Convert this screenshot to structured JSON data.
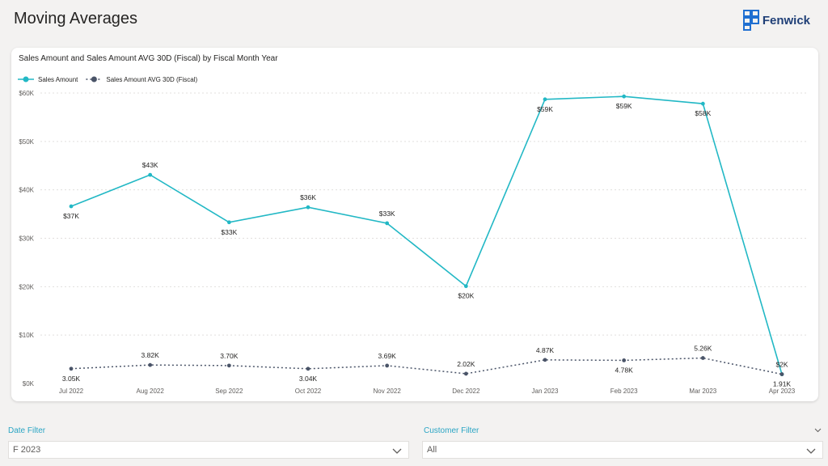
{
  "page": {
    "title": "Moving Averages"
  },
  "brand": {
    "name": "Fenwick"
  },
  "colors": {
    "sales": "#22b8c5",
    "avg": "#4a5468",
    "accent": "#2aa5c4"
  },
  "chart_data": {
    "type": "line",
    "title": "Sales Amount and Sales Amount AVG 30D (Fiscal) by Fiscal Month Year",
    "categories": [
      "Jul 2022",
      "Aug 2022",
      "Sep 2022",
      "Oct 2022",
      "Nov 2022",
      "Dec 2022",
      "Jan 2023",
      "Feb 2023",
      "Mar 2023",
      "Apr 2023"
    ],
    "ylim": [
      0,
      60000
    ],
    "yticks": [
      "$0K",
      "$10K",
      "$20K",
      "$30K",
      "$40K",
      "$50K",
      "$60K"
    ],
    "grid": true,
    "legend_position": "top-left",
    "series": [
      {
        "name": "Sales Amount",
        "style": "solid",
        "values": [
          36600,
          43100,
          33300,
          36400,
          33100,
          20100,
          58700,
          59300,
          57800,
          1900
        ],
        "labels": [
          "$37K",
          "$43K",
          "$33K",
          "$36K",
          "$33K",
          "$20K",
          "$59K",
          "$59K",
          "$58K",
          "$2K"
        ],
        "label_pos": [
          "below",
          "above",
          "below",
          "above",
          "above",
          "below",
          "below",
          "below",
          "below",
          "above"
        ]
      },
      {
        "name": "Sales Amount AVG 30D (Fiscal)",
        "style": "dotted",
        "values": [
          3050,
          3820,
          3700,
          3040,
          3690,
          2020,
          4870,
          4780,
          5260,
          1910
        ],
        "labels": [
          "3.05K",
          "3.82K",
          "3.70K",
          "3.04K",
          "3.69K",
          "2.02K",
          "4.87K",
          "4.78K",
          "5.26K",
          "1.91K"
        ],
        "label_pos": [
          "below",
          "above",
          "above",
          "below",
          "above",
          "above",
          "above",
          "below",
          "above",
          "below"
        ]
      }
    ]
  },
  "filters": {
    "date": {
      "label": "Date Filter",
      "value": "F 2023"
    },
    "customer": {
      "label": "Customer Filter",
      "value": "All"
    }
  }
}
